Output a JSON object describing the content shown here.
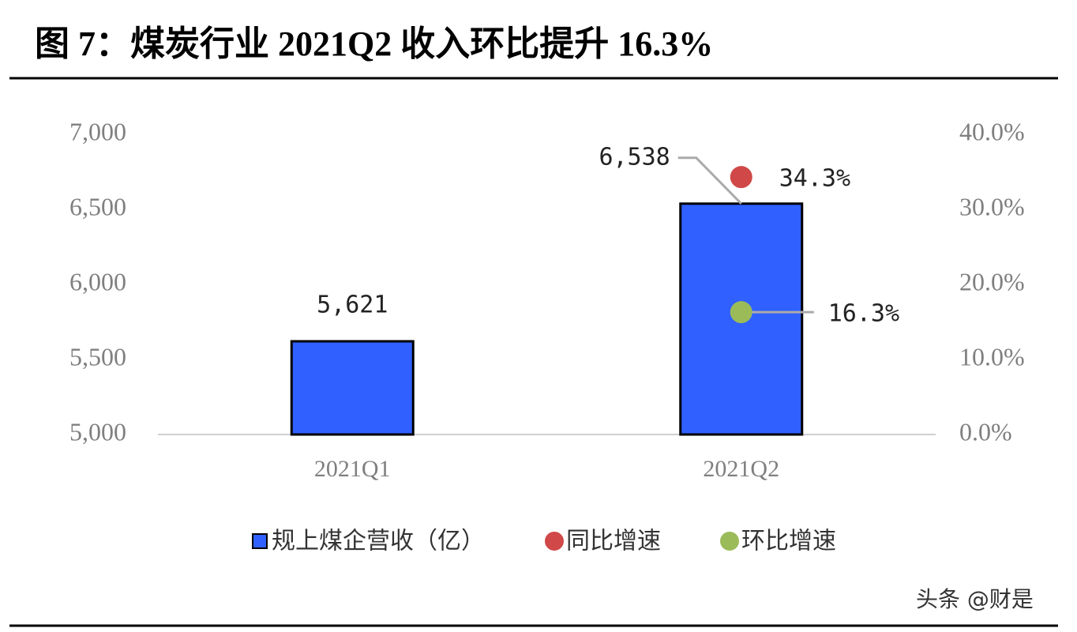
{
  "chart_data": {
    "type": "bar",
    "title": "图 7：煤炭行业 2021Q2 收入环比提升 16.3%",
    "watermark": "头条 @财是",
    "categories": [
      "2021Q1",
      "2021Q2"
    ],
    "series": [
      {
        "name": "规上煤企营收（亿）",
        "type": "bar",
        "color": "#3060ff",
        "values": [
          5621,
          6538
        ],
        "value_labels": [
          "5,621",
          "6,538"
        ]
      },
      {
        "name": "同比增速",
        "type": "scatter",
        "axis": "y2",
        "color": "#d04848",
        "values": [
          null,
          34.3
        ],
        "value_labels": [
          null,
          "34.3%"
        ]
      },
      {
        "name": "环比增速",
        "type": "scatter",
        "axis": "y2",
        "color": "#9bbb59",
        "values": [
          null,
          16.3
        ],
        "value_labels": [
          null,
          "16.3%"
        ]
      }
    ],
    "ylim": [
      5000,
      7000
    ],
    "yticks": [
      {
        "value": 5000,
        "label": "5,000"
      },
      {
        "value": 5500,
        "label": "5,500"
      },
      {
        "value": 6000,
        "label": "6,000"
      },
      {
        "value": 6500,
        "label": "6,500"
      },
      {
        "value": 7000,
        "label": "7,000"
      }
    ],
    "y2lim": [
      0,
      40
    ],
    "y2ticks": [
      {
        "value": 0,
        "label": "0.0%"
      },
      {
        "value": 10,
        "label": "10.0%"
      },
      {
        "value": 20,
        "label": "20.0%"
      },
      {
        "value": 30,
        "label": "30.0%"
      },
      {
        "value": 40,
        "label": "40.0%"
      }
    ]
  }
}
